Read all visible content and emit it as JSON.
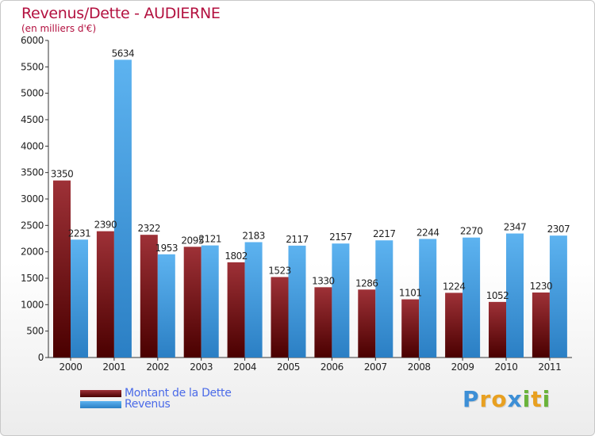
{
  "chart_data": {
    "type": "bar",
    "title": "Revenus/Dette - AUDIERNE",
    "subtitle": "(en milliers d'€)",
    "categories": [
      "2000",
      "2001",
      "2002",
      "2003",
      "2004",
      "2005",
      "2006",
      "2007",
      "2008",
      "2009",
      "2010",
      "2011"
    ],
    "series": [
      {
        "name": "Montant de la Dette",
        "color": "#7a1a1e",
        "values": [
          3350,
          2390,
          2322,
          2095,
          1802,
          1523,
          1330,
          1286,
          1101,
          1224,
          1052,
          1230
        ]
      },
      {
        "name": "Revenus",
        "color": "#4aa3e6",
        "values": [
          2231,
          5634,
          1953,
          2121,
          2183,
          2117,
          2157,
          2217,
          2244,
          2270,
          2347,
          2307
        ]
      }
    ],
    "ylim": [
      0,
      6000
    ],
    "yticks": [
      0,
      500,
      1000,
      1500,
      2000,
      2500,
      3000,
      3500,
      4000,
      4500,
      5000,
      5500,
      6000
    ],
    "grid": false,
    "legend": "bottom-left"
  },
  "logo": {
    "letters": [
      "P",
      "r",
      "o",
      "x",
      "i",
      "t",
      "i"
    ],
    "colors": [
      "#3d8fd6",
      "#e8a020",
      "#e8a020",
      "#3d8fd6",
      "#6ab33a",
      "#e8a020",
      "#6ab33a"
    ]
  }
}
